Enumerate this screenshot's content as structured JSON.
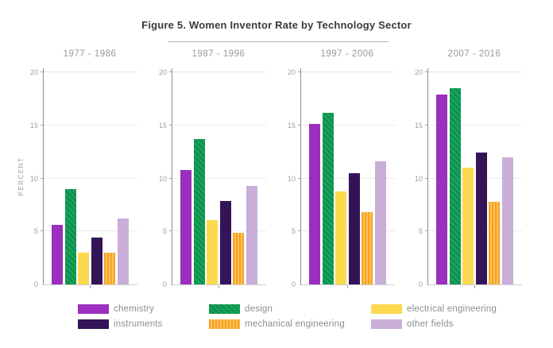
{
  "figure": {
    "title": "Figure 5. Women Inventor Rate by Technology Sector"
  },
  "chart_data": {
    "type": "bar",
    "title": "Figure 5. Women Inventor Rate by Technology Sector",
    "ylabel": "PERCENT",
    "xlabel": "",
    "ylim": [
      0,
      20
    ],
    "yticks": [
      0,
      5,
      10,
      15,
      20
    ],
    "grid": true,
    "legend_position": "bottom",
    "categories": [
      "chemistry",
      "design",
      "electrical engineering",
      "instruments",
      "mechanical engineering",
      "other fields"
    ],
    "panels": [
      {
        "label": "1977 - 1986",
        "values": [
          5.6,
          9.0,
          3.0,
          4.4,
          3.0,
          6.2
        ]
      },
      {
        "label": "1987 - 1996",
        "values": [
          10.8,
          13.7,
          6.1,
          7.9,
          4.9,
          9.3
        ]
      },
      {
        "label": "1997 - 2006",
        "values": [
          15.1,
          16.2,
          8.8,
          10.5,
          6.8,
          11.6
        ]
      },
      {
        "label": "2007 - 2016",
        "values": [
          17.9,
          18.5,
          11.0,
          12.4,
          7.8,
          12.0
        ]
      }
    ],
    "series": [
      {
        "name": "chemistry",
        "color": "#9b2fbe",
        "pattern": "solid"
      },
      {
        "name": "design",
        "color": "#16a35a",
        "pattern": "diagonal",
        "pattern_color": "#0e8c49"
      },
      {
        "name": "electrical engineering",
        "color": "#fcd94f",
        "pattern": "solid"
      },
      {
        "name": "instruments",
        "color": "#331557",
        "pattern": "solid"
      },
      {
        "name": "mechanical engineering",
        "color": "#f7a21c",
        "pattern": "vertical",
        "pattern_color": "#fcc160"
      },
      {
        "name": "other fields",
        "color": "#c9aed8",
        "pattern": "solid"
      }
    ],
    "colors": {
      "title_text": "#3a3a3a",
      "axis_text": "#9f9f9f",
      "gridline": "#e9e9e9"
    }
  }
}
